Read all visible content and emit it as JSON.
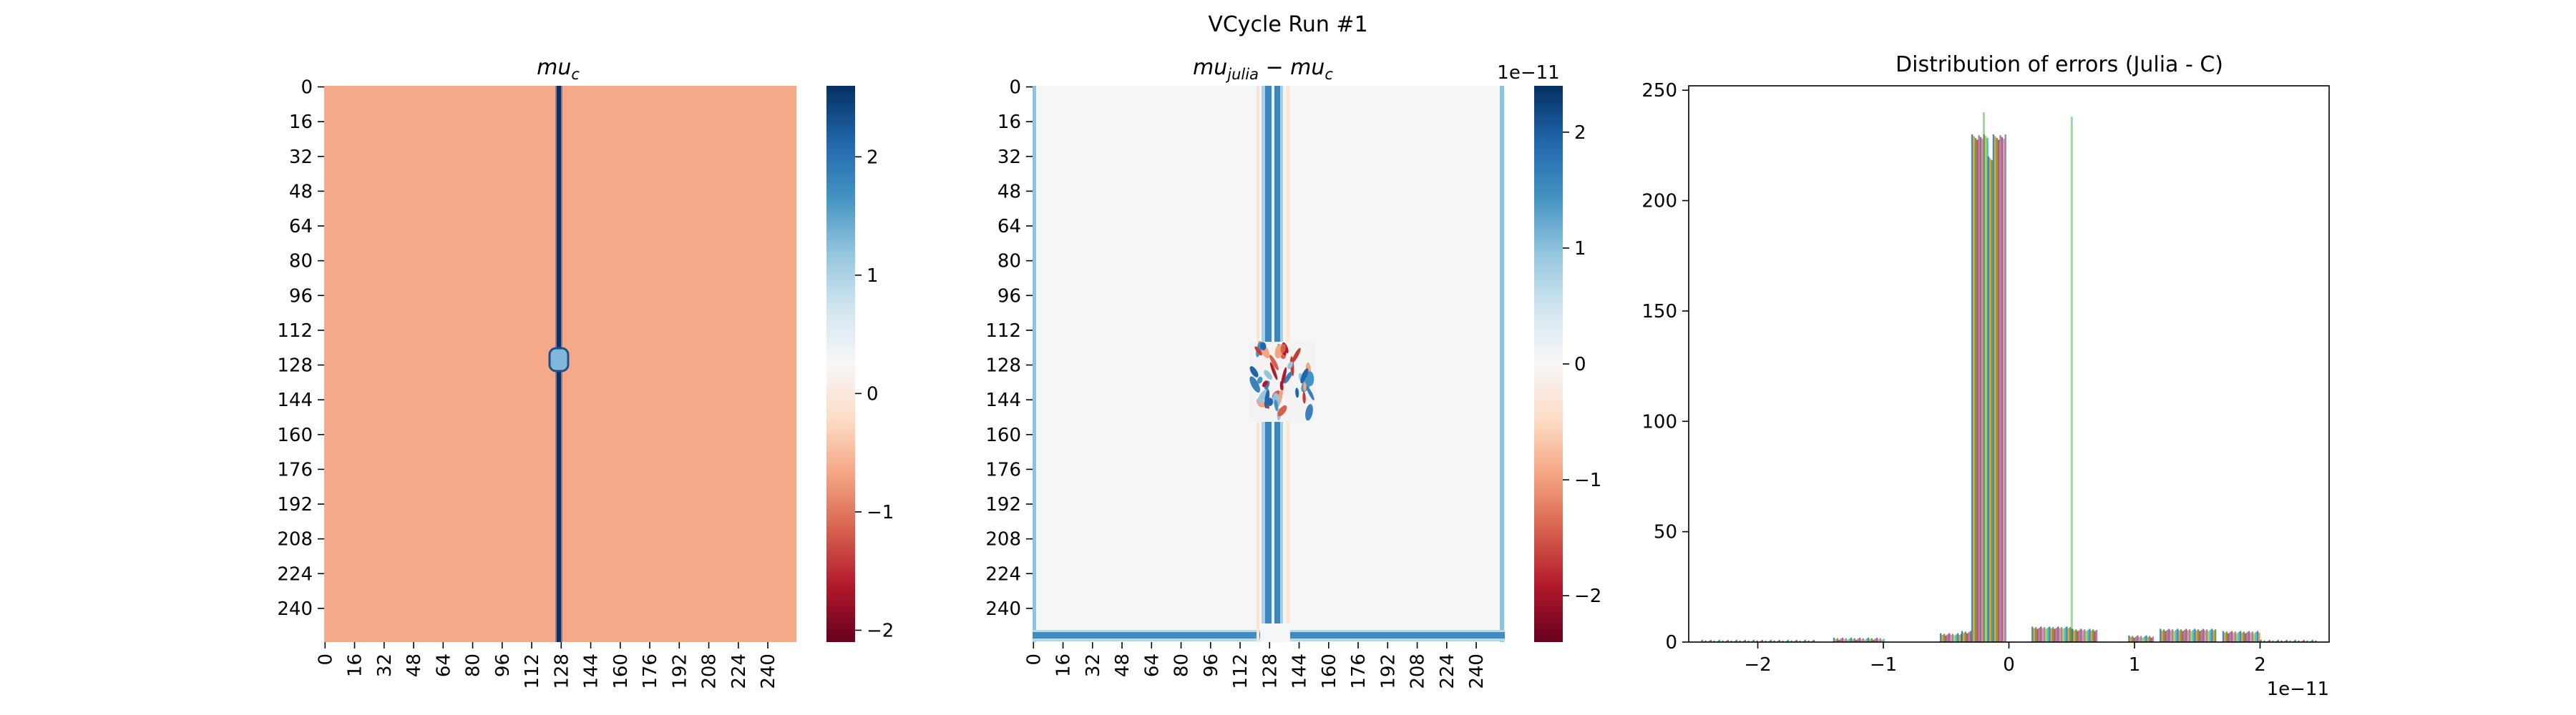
{
  "figure": {
    "suptitle": "VCycle Run #1"
  },
  "chart_data": [
    {
      "type": "heatmap",
      "title_base": "mu",
      "title_sub": "c",
      "grid": false,
      "x_ticklabels": [
        "0",
        "16",
        "32",
        "48",
        "64",
        "80",
        "96",
        "112",
        "128",
        "144",
        "160",
        "176",
        "192",
        "208",
        "224",
        "240"
      ],
      "y_ticklabels": [
        "0",
        "16",
        "32",
        "48",
        "64",
        "80",
        "96",
        "112",
        "128",
        "144",
        "160",
        "176",
        "192",
        "208",
        "224",
        "240"
      ],
      "n_cells": 256,
      "background_value": -0.85,
      "features": [
        {
          "kind": "vertical line",
          "column": 128,
          "value": 2.6
        },
        {
          "kind": "spot",
          "row": 128,
          "column": 128,
          "value": 0.5
        }
      ],
      "colormap": "RdBu",
      "colorbar": {
        "ticks": [
          "2",
          "1",
          "0",
          "−1",
          "−2"
        ],
        "tick_values": [
          2,
          1,
          0,
          -1,
          -2
        ],
        "range": [
          -2.1,
          2.6
        ]
      }
    },
    {
      "type": "heatmap",
      "title_lhs_base": "mu",
      "title_lhs_sub": "julia",
      "title_op": " − ",
      "title_rhs_base": "mu",
      "title_rhs_sub": "c",
      "grid": false,
      "x_ticklabels": [
        "0",
        "16",
        "32",
        "48",
        "64",
        "80",
        "96",
        "112",
        "128",
        "144",
        "160",
        "176",
        "192",
        "208",
        "224",
        "240"
      ],
      "y_ticklabels": [
        "0",
        "16",
        "32",
        "48",
        "64",
        "80",
        "96",
        "112",
        "128",
        "144",
        "160",
        "176",
        "192",
        "208",
        "224",
        "240"
      ],
      "n_cells": 256,
      "background_value": 0,
      "features": [
        {
          "kind": "vertical band",
          "columns": [
            127,
            138
          ],
          "value": 1.6
        },
        {
          "kind": "bottom border",
          "value": 1.4
        },
        {
          "kind": "left and right borders",
          "value": 0.8
        },
        {
          "kind": "noisy patch",
          "rows": [
            118,
            155
          ],
          "columns": [
            100,
            133
          ]
        }
      ],
      "colormap": "RdBu",
      "colorbar": {
        "ticks": [
          "2",
          "1",
          "0",
          "−1",
          "−2"
        ],
        "tick_values": [
          2,
          1,
          0,
          -1,
          -2
        ],
        "range": [
          -2.4,
          2.4
        ],
        "scale_label": "1e−11"
      }
    },
    {
      "type": "bar",
      "title": "Distribution of errors (Julia - C)",
      "grid": false,
      "xlim": [
        -2.55,
        2.55
      ],
      "ylim": [
        0,
        252
      ],
      "x_ticks": [
        -2,
        -1,
        0,
        1,
        2
      ],
      "x_ticklabels": [
        "−2",
        "−1",
        "0",
        "1",
        "2"
      ],
      "x_scale_label": "1e−11",
      "y_ticks": [
        0,
        50,
        100,
        150,
        200,
        250
      ],
      "y_ticklabels": [
        "0",
        "50",
        "100",
        "150",
        "200",
        "250"
      ],
      "series_colors": [
        "#1f77b4",
        "#ff7f0e",
        "#2ca02c",
        "#d62728",
        "#9467bd",
        "#8c564b",
        "#e377c2",
        "#7f7f7f",
        "#bcbd22",
        "#17becf"
      ],
      "bins": [
        {
          "x0": -2.45,
          "x1": -1.55,
          "count": 1
        },
        {
          "x0": -1.4,
          "x1": -1.0,
          "count": 2
        },
        {
          "x0": -0.55,
          "x1": -0.38,
          "count": 4
        },
        {
          "x0": -0.38,
          "x1": -0.3,
          "count": 5
        },
        {
          "x0": -0.3,
          "x1": -0.17,
          "count": 230
        },
        {
          "x0": -0.17,
          "x1": -0.13,
          "count": 220
        },
        {
          "x0": -0.13,
          "x1": -0.02,
          "count": 230
        },
        {
          "x0": 0.18,
          "x1": 0.5,
          "count": 7
        },
        {
          "x0": 0.5,
          "x1": 0.7,
          "count": 6
        },
        {
          "x0": 0.95,
          "x1": 1.15,
          "count": 3
        },
        {
          "x0": 1.2,
          "x1": 1.65,
          "count": 6
        },
        {
          "x0": 1.7,
          "x1": 2.0,
          "count": 5
        },
        {
          "x0": 2.0,
          "x1": 2.45,
          "count": 1
        }
      ],
      "spikes": [
        {
          "x": 0.5,
          "count": 238,
          "color": "#2ca02c"
        },
        {
          "x": -0.2,
          "count": 240,
          "color": "#2ca02c"
        }
      ]
    }
  ]
}
